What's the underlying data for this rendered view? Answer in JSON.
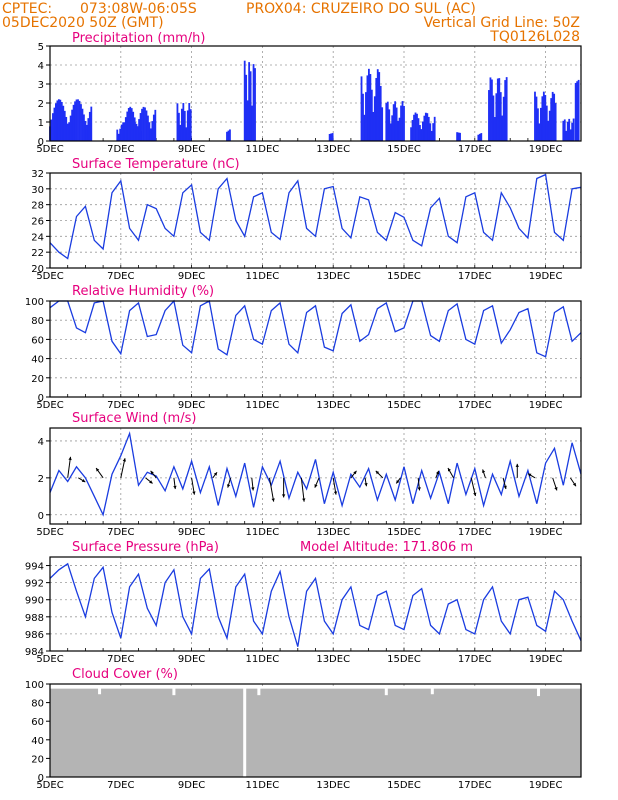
{
  "header": {
    "line1_left": "CPTEC:",
    "line1_coords": "073:08W-06:05S",
    "line1_station": "PROX04: CRUZEIRO DO SUL (AC)",
    "line2_left": "05DEC2020 50Z (GMT)",
    "line2_right": "Vertical Grid Line: 50Z",
    "line3_right": "TQ0126L028"
  },
  "colors": {
    "header": "#e67300",
    "title": "#e6007e",
    "series": "#1a3ce0",
    "bar": "#1f2ff5",
    "cloud": "#b4b4b4",
    "grid": "#9a9a9a"
  },
  "x_axis": {
    "labels": [
      "5DEC",
      "7DEC",
      "9DEC",
      "11DEC",
      "13DEC",
      "15DEC",
      "17DEC",
      "19DEC"
    ],
    "label_days": [
      0,
      2,
      4,
      6,
      8,
      10,
      12,
      14
    ],
    "day_span": [
      0,
      15
    ]
  },
  "chart_data": [
    {
      "type": "bar",
      "title": "Precipitation (mm/h)",
      "ylim": [
        0,
        5
      ],
      "yticks": [
        "0",
        "1",
        "2",
        "3",
        "4",
        "5"
      ],
      "x_unit": "days since 5DEC 00Z (hourly)",
      "bursts": [
        {
          "start": 0.0,
          "end": 1.2,
          "peak": 2.2
        },
        {
          "start": 1.9,
          "end": 2.6,
          "peak": 1.0
        },
        {
          "start": 2.1,
          "end": 3.0,
          "peak": 1.8
        },
        {
          "start": 3.6,
          "end": 4.0,
          "peak": 2.0
        },
        {
          "start": 5.0,
          "end": 5.1,
          "peak": 1.0
        },
        {
          "start": 5.5,
          "end": 5.8,
          "peak": 4.3
        },
        {
          "start": 7.9,
          "end": 8.0,
          "peak": 0.5
        },
        {
          "start": 8.8,
          "end": 9.4,
          "peak": 3.8
        },
        {
          "start": 9.5,
          "end": 10.0,
          "peak": 2.1
        },
        {
          "start": 10.2,
          "end": 10.9,
          "peak": 1.5
        },
        {
          "start": 11.5,
          "end": 11.6,
          "peak": 0.5
        },
        {
          "start": 12.1,
          "end": 12.2,
          "peak": 0.7
        },
        {
          "start": 12.4,
          "end": 12.9,
          "peak": 3.4
        },
        {
          "start": 13.7,
          "end": 14.3,
          "peak": 2.6
        },
        {
          "start": 14.5,
          "end": 14.8,
          "peak": 1.2
        },
        {
          "start": 14.85,
          "end": 14.95,
          "peak": 3.3
        }
      ]
    },
    {
      "type": "line",
      "title": "Surface Temperature (nC)",
      "ylim": [
        20,
        32
      ],
      "yticks": [
        "20",
        "22",
        "24",
        "26",
        "28",
        "30",
        "32"
      ],
      "x": [
        0,
        0.25,
        0.5,
        0.75,
        1.0,
        1.25,
        1.5,
        1.75,
        2.0,
        2.25,
        2.5,
        2.75,
        3.0,
        3.25,
        3.5,
        3.75,
        4.0,
        4.25,
        4.5,
        4.75,
        5.0,
        5.25,
        5.5,
        5.75,
        6.0,
        6.25,
        6.5,
        6.75,
        7.0,
        7.25,
        7.5,
        7.75,
        8.0,
        8.25,
        8.5,
        8.75,
        9.0,
        9.25,
        9.5,
        9.75,
        10.0,
        10.25,
        10.5,
        10.75,
        11.0,
        11.25,
        11.5,
        11.75,
        12.0,
        12.25,
        12.5,
        12.75,
        13.0,
        13.25,
        13.5,
        13.75,
        14.0,
        14.25,
        14.5,
        14.75,
        15.0
      ],
      "y": [
        23.2,
        22.0,
        21.2,
        26.5,
        27.8,
        23.5,
        22.4,
        29.5,
        31.0,
        25.0,
        23.5,
        28.0,
        27.5,
        25.0,
        24.0,
        29.5,
        30.5,
        24.5,
        23.5,
        30.0,
        31.3,
        26.0,
        24.0,
        29.0,
        29.5,
        24.5,
        23.6,
        29.5,
        31.0,
        25.0,
        24.0,
        30.0,
        30.3,
        25.0,
        23.8,
        29.0,
        28.6,
        24.5,
        23.5,
        27.0,
        26.4,
        23.5,
        22.8,
        27.6,
        28.8,
        24.0,
        23.2,
        29.0,
        29.5,
        24.5,
        23.5,
        29.5,
        27.6,
        25.0,
        23.8,
        31.3,
        31.8,
        24.5,
        23.5,
        30.0,
        30.2
      ]
    },
    {
      "type": "line",
      "title": "Relative Humidity (%)",
      "ylim": [
        0,
        100
      ],
      "yticks": [
        "0",
        "20",
        "40",
        "60",
        "80",
        "100"
      ],
      "x": [
        0,
        0.25,
        0.5,
        0.75,
        1.0,
        1.25,
        1.5,
        1.75,
        2.0,
        2.25,
        2.5,
        2.75,
        3.0,
        3.25,
        3.5,
        3.75,
        4.0,
        4.25,
        4.5,
        4.75,
        5.0,
        5.25,
        5.5,
        5.75,
        6.0,
        6.25,
        6.5,
        6.75,
        7.0,
        7.25,
        7.5,
        7.75,
        8.0,
        8.25,
        8.5,
        8.75,
        9.0,
        9.25,
        9.5,
        9.75,
        10.0,
        10.25,
        10.5,
        10.75,
        11.0,
        11.25,
        11.5,
        11.75,
        12.0,
        12.25,
        12.5,
        12.75,
        13.0,
        13.25,
        13.5,
        13.75,
        14.0,
        14.25,
        14.5,
        14.75,
        15.0
      ],
      "y": [
        93,
        100,
        100,
        72,
        67,
        98,
        100,
        58,
        45,
        90,
        98,
        63,
        65,
        90,
        100,
        54,
        46,
        95,
        100,
        50,
        44,
        85,
        95,
        60,
        55,
        90,
        98,
        55,
        46,
        88,
        95,
        52,
        48,
        87,
        96,
        58,
        65,
        92,
        98,
        68,
        72,
        100,
        100,
        64,
        58,
        90,
        97,
        60,
        55,
        90,
        95,
        56,
        70,
        88,
        92,
        46,
        42,
        88,
        94,
        58,
        67
      ]
    },
    {
      "type": "line",
      "title": "Surface Wind (m/s)",
      "ylim": [
        -0.5,
        4.7
      ],
      "yticks": [
        "0",
        "2",
        "4"
      ],
      "x": [
        0,
        0.25,
        0.5,
        0.75,
        1.0,
        1.25,
        1.5,
        1.75,
        2.0,
        2.25,
        2.5,
        2.75,
        3.0,
        3.25,
        3.5,
        3.75,
        4.0,
        4.25,
        4.5,
        4.75,
        5.0,
        5.25,
        5.5,
        5.75,
        6.0,
        6.25,
        6.5,
        6.75,
        7.0,
        7.25,
        7.5,
        7.75,
        8.0,
        8.25,
        8.5,
        8.75,
        9.0,
        9.25,
        9.5,
        9.75,
        10.0,
        10.25,
        10.5,
        10.75,
        11.0,
        11.25,
        11.5,
        11.75,
        12.0,
        12.25,
        12.5,
        12.75,
        13.0,
        13.25,
        13.5,
        13.75,
        14.0,
        14.25,
        14.5,
        14.75,
        15.0
      ],
      "y": [
        1.2,
        2.4,
        1.8,
        2.6,
        2.0,
        1.0,
        0.0,
        2.2,
        3.2,
        4.4,
        1.6,
        2.3,
        2.1,
        1.3,
        2.6,
        1.4,
        2.9,
        1.2,
        2.6,
        0.5,
        2.5,
        1.0,
        2.8,
        0.4,
        2.6,
        1.6,
        2.9,
        0.9,
        2.3,
        1.4,
        3.0,
        0.6,
        2.3,
        0.5,
        2.2,
        1.5,
        2.5,
        0.8,
        2.2,
        0.8,
        2.6,
        0.6,
        2.4,
        0.9,
        2.3,
        0.6,
        2.8,
        1.1,
        2.5,
        0.5,
        2.2,
        1.1,
        2.9,
        1.0,
        2.4,
        0.6,
        2.8,
        3.6,
        1.6,
        3.9,
        2.2
      ],
      "arrows": {
        "x": [
          0.5,
          0.8,
          1.5,
          2.0,
          2.7,
          3.0,
          3.5,
          4.0,
          4.6,
          5.1,
          5.7,
          6.2,
          6.6,
          7.1,
          7.6,
          8.0,
          8.5,
          8.9,
          9.4,
          9.9,
          10.4,
          10.9,
          11.4,
          11.9,
          12.3,
          12.8,
          13.2,
          13.7,
          14.2,
          14.7
        ],
        "u": [
          0.2,
          0.5,
          -0.5,
          0.3,
          0.5,
          -0.4,
          0.1,
          0.2,
          0.3,
          -0.2,
          0.1,
          0.3,
          0.0,
          0.2,
          -0.3,
          0.2,
          0.4,
          0.1,
          -0.5,
          -0.3,
          0.1,
          0.2,
          -0.4,
          0.3,
          -0.2,
          0.2,
          0.0,
          -0.5,
          0.3,
          0.4
        ],
        "v": [
          1.5,
          -0.3,
          0.7,
          1.4,
          -0.4,
          0.5,
          -0.8,
          -1.2,
          0.4,
          -0.7,
          -0.9,
          -1.7,
          -1.4,
          -1.7,
          -0.7,
          -1.2,
          0.5,
          -0.6,
          0.5,
          -0.4,
          -0.9,
          0.5,
          0.7,
          -1.3,
          0.6,
          -0.8,
          1.0,
          0.3,
          -0.9,
          -0.6
        ]
      }
    },
    {
      "type": "line",
      "title": "Surface Pressure (hPa)",
      "annotation": "Model Altitude: 171.806  m",
      "ylim": [
        984,
        995
      ],
      "yticks": [
        "984",
        "986",
        "988",
        "990",
        "992",
        "994"
      ],
      "x": [
        0,
        0.25,
        0.5,
        0.75,
        1.0,
        1.25,
        1.5,
        1.75,
        2.0,
        2.25,
        2.5,
        2.75,
        3.0,
        3.25,
        3.5,
        3.75,
        4.0,
        4.25,
        4.5,
        4.75,
        5.0,
        5.25,
        5.5,
        5.75,
        6.0,
        6.25,
        6.5,
        6.75,
        7.0,
        7.25,
        7.5,
        7.75,
        8.0,
        8.25,
        8.5,
        8.75,
        9.0,
        9.25,
        9.5,
        9.75,
        10.0,
        10.25,
        10.5,
        10.75,
        11.0,
        11.25,
        11.5,
        11.75,
        12.0,
        12.25,
        12.5,
        12.75,
        13.0,
        13.25,
        13.5,
        13.75,
        14.0,
        14.25,
        14.5,
        14.75,
        15.0
      ],
      "y": [
        992.5,
        993.5,
        994.2,
        991.0,
        988.0,
        992.5,
        993.8,
        988.5,
        985.5,
        991.5,
        993.0,
        989.0,
        987.0,
        992.0,
        993.5,
        988.0,
        986.0,
        992.5,
        993.6,
        988.0,
        985.5,
        991.5,
        993.0,
        987.5,
        986.0,
        991.0,
        993.3,
        988.0,
        984.5,
        991.0,
        992.5,
        987.5,
        986.0,
        990.0,
        991.5,
        987.0,
        986.5,
        990.5,
        991.0,
        987.0,
        986.5,
        990.5,
        991.3,
        987.0,
        986.0,
        989.5,
        990.0,
        986.5,
        986.0,
        990.0,
        991.5,
        987.5,
        986.0,
        990.0,
        990.3,
        987.0,
        986.3,
        991.0,
        990.0,
        987.5,
        985.2
      ]
    },
    {
      "type": "bar",
      "title": "Cloud Cover (%)",
      "ylim": [
        0,
        100
      ],
      "yticks": [
        "0",
        "20",
        "40",
        "60",
        "80",
        "100"
      ],
      "fill": 95,
      "dips": [
        {
          "day": 1.4,
          "value": 89
        },
        {
          "day": 3.5,
          "value": 88
        },
        {
          "day": 5.5,
          "value": 0
        },
        {
          "day": 5.9,
          "value": 88
        },
        {
          "day": 9.5,
          "value": 88
        },
        {
          "day": 10.8,
          "value": 89
        },
        {
          "day": 13.8,
          "value": 87
        }
      ]
    }
  ]
}
